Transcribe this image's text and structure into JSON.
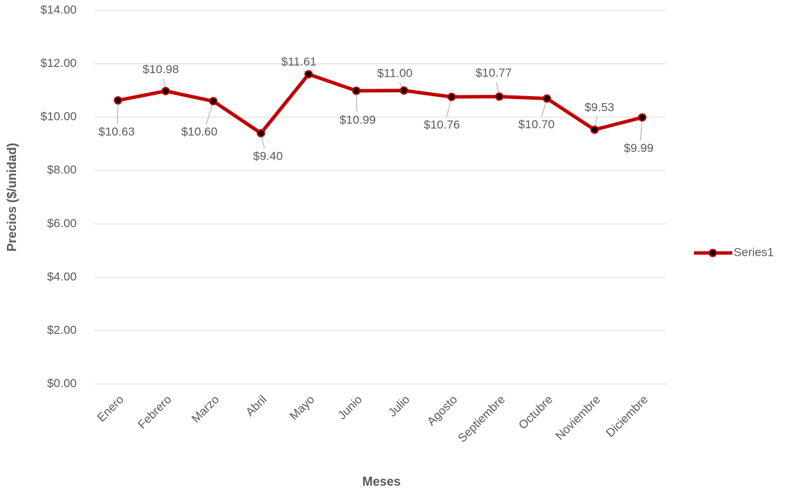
{
  "chart_data": {
    "type": "line",
    "categories": [
      "Enero",
      "Febrero",
      "Marzo",
      "Abril",
      "Mayo",
      "Junio",
      "Julio",
      "Agosto",
      "Septiembre",
      "Octubre",
      "Noviembre",
      "Diciembre"
    ],
    "series": [
      {
        "name": "Series1",
        "color": "#c00000",
        "values": [
          10.63,
          10.98,
          10.6,
          9.4,
          11.61,
          10.99,
          11.0,
          10.76,
          10.77,
          10.7,
          9.53,
          9.99
        ],
        "value_labels": [
          "$10.63",
          "$10.98",
          "$10.60",
          "$9.40",
          "$11.61",
          "$10.99",
          "$11.00",
          "$10.76",
          "$10.77",
          "$10.70",
          "$9.53",
          "$9.99"
        ]
      }
    ],
    "xlabel": "Meses",
    "ylabel": "Precios ($/unidad)",
    "ylim": [
      0,
      14
    ],
    "yticks": [
      {
        "value": 0,
        "label": "$0.00"
      },
      {
        "value": 2,
        "label": "$2.00"
      },
      {
        "value": 4,
        "label": "$4.00"
      },
      {
        "value": 6,
        "label": "$6.00"
      },
      {
        "value": 8,
        "label": "$8.00"
      },
      {
        "value": 10,
        "label": "$10.00"
      },
      {
        "value": 12,
        "label": "$12.00"
      },
      {
        "value": 14,
        "label": "$14.00"
      }
    ],
    "grid": true,
    "legend": "right"
  }
}
